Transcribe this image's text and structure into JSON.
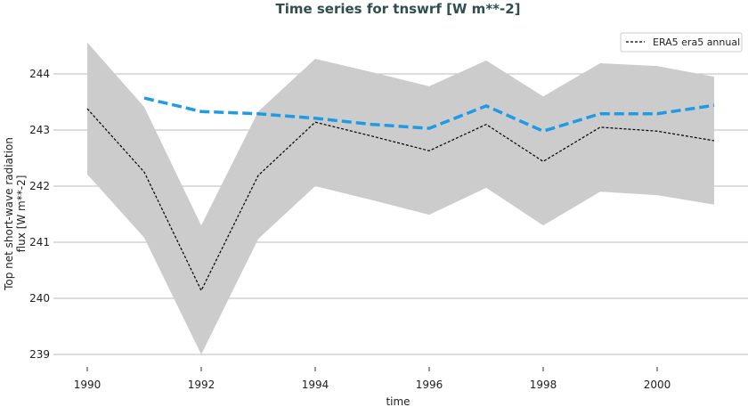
{
  "chart_data": {
    "type": "line",
    "title": "Time series for tnswrf [W m**-2]",
    "xlabel": "time",
    "ylabel": "Top net short-wave radiation flux [W m**-2]",
    "ylabel_lines": [
      "Top net short-wave radiation",
      "flux [W m**-2]"
    ],
    "xlim": [
      1989.4,
      2002.8
    ],
    "ylim": [
      238.7,
      245.2
    ],
    "xticks": [
      1990,
      1992,
      1994,
      1996,
      1998,
      2000
    ],
    "yticks": [
      239,
      240,
      241,
      242,
      243,
      244
    ],
    "grid": "horizontal",
    "legend_position": "top-right",
    "x": [
      1990,
      1991,
      1992,
      1993,
      1994,
      1995,
      1996,
      1997,
      1998,
      1999,
      2000,
      2001
    ],
    "series": [
      {
        "name": "ERA5 era5 annual",
        "color": "#000000",
        "style": "dashed",
        "values": [
          243.38,
          242.25,
          240.14,
          242.19,
          243.14,
          242.89,
          242.63,
          243.1,
          242.44,
          243.05,
          242.98,
          242.81
        ]
      },
      {
        "color": "#1f9be6",
        "style": "dashed-thick",
        "x": [
          1991,
          1992,
          1993,
          1994,
          1995,
          1996,
          1997,
          1998,
          1999,
          2000,
          2001
        ],
        "values": [
          243.57,
          243.33,
          243.29,
          243.21,
          243.1,
          243.03,
          243.43,
          242.98,
          243.29,
          243.29,
          243.44
        ]
      }
    ],
    "band": {
      "color": "#cccccc",
      "upper": [
        244.56,
        243.41,
        241.3,
        243.33,
        244.27,
        244.03,
        243.78,
        244.24,
        243.6,
        244.19,
        244.14,
        243.95
      ],
      "lower": [
        242.21,
        241.08,
        239.0,
        241.06,
        242.0,
        241.75,
        241.49,
        241.97,
        241.3,
        241.9,
        241.84,
        241.67
      ]
    }
  }
}
